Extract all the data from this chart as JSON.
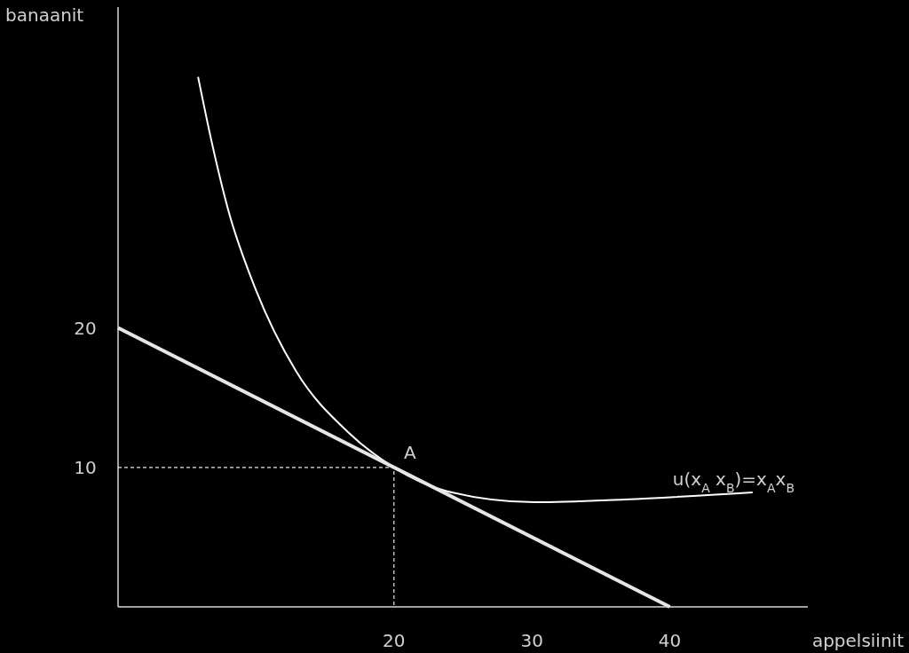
{
  "chart_data": {
    "type": "line",
    "xlabel": "appelsiinit",
    "ylabel": "banaanit",
    "xlim": [
      0,
      50
    ],
    "ylim": [
      0,
      43
    ],
    "xticks": [
      20,
      30,
      40
    ],
    "yticks": [
      10,
      20
    ],
    "grid": false,
    "series": [
      {
        "color": "#ffffff",
        "x": [
          5.8,
          6.75,
          8,
          10,
          12.9,
          16.7,
          20,
          23.8,
          30.2,
          36.7,
          46
        ],
        "values": [
          38,
          33.5,
          28.4,
          22.7,
          16.9,
          12.5,
          10,
          8.3,
          7.5,
          7.7,
          8.2
        ]
      },
      {
        "color": "#e6e6e6",
        "x": [
          0,
          40
        ],
        "values": [
          20,
          0
        ]
      },
      {
        "color": "#e6e6e6",
        "x": [
          0,
          20,
          20
        ],
        "values": [
          10,
          10,
          0
        ],
        "line_style": "dashed"
      }
    ],
    "annotations": [
      {
        "text": "A",
        "x": 20,
        "y": 10
      },
      {
        "text": "u(x$_{A}$ x$_{B}$)=x$_{A}$x$_{B}$",
        "x": 46,
        "y": 8.2
      }
    ]
  }
}
